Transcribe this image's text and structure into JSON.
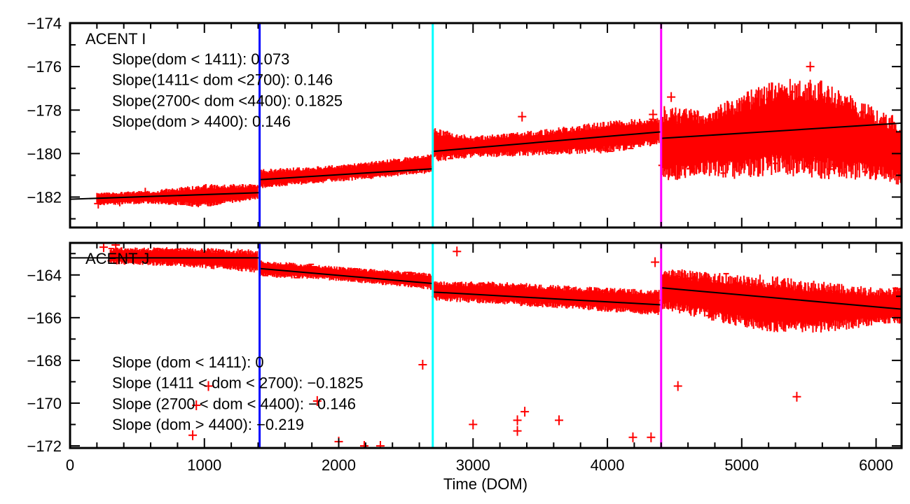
{
  "chart_data": [
    {
      "type": "scatter",
      "panel_label": "ACENT I",
      "annotations": [
        "Slope(dom < 1411): 0.073",
        "Slope(1411< dom <2700): 0.146",
        "Slope(2700< dom <4400): 0.1825",
        "Slope(dom > 4400): 0.146"
      ],
      "xlim": [
        0,
        6190
      ],
      "ylim": [
        -183.4,
        -174
      ],
      "yticks": [
        -174,
        -176,
        -178,
        -180,
        -182
      ],
      "ytick_labels": [
        "−174",
        "−176",
        "−178",
        "−180",
        "−182"
      ],
      "series_color": "#ff0000",
      "band": [
        [
          200,
          -182.4,
          -181.8
        ],
        [
          600,
          -182.3,
          -181.7
        ],
        [
          1000,
          -182.5,
          -181.4
        ],
        [
          1400,
          -182.1,
          -181.4
        ],
        [
          1411,
          -181.6,
          -180.7
        ],
        [
          1800,
          -181.4,
          -180.6
        ],
        [
          2200,
          -181.2,
          -180.4
        ],
        [
          2690,
          -180.9,
          -180.0
        ],
        [
          2700,
          -180.4,
          -178.8
        ],
        [
          3000,
          -180.2,
          -179.2
        ],
        [
          3500,
          -180.1,
          -178.9
        ],
        [
          4000,
          -180.0,
          -178.5
        ],
        [
          4390,
          -179.6,
          -178.3
        ],
        [
          4400,
          -181.4,
          -177.8
        ],
        [
          4700,
          -181.0,
          -178.0
        ],
        [
          5000,
          -181.2,
          -177.2
        ],
        [
          5300,
          -181.0,
          -176.5
        ],
        [
          5600,
          -181.2,
          -176.6
        ],
        [
          5900,
          -181.2,
          -177.6
        ],
        [
          6190,
          -181.5,
          -178.4
        ]
      ],
      "outliers": [
        [
          210,
          -182.3
        ],
        [
          370,
          -182.2
        ],
        [
          560,
          -181.8
        ],
        [
          3365,
          -178.3
        ],
        [
          4340,
          -178.2
        ],
        [
          4475,
          -177.4
        ],
        [
          5510,
          -176.0
        ],
        [
          4620,
          -180.7
        ],
        [
          5700,
          -180.5
        ]
      ],
      "fit_segments": [
        {
          "x": [
            0,
            1411
          ],
          "y": [
            -182.1,
            -181.8
          ]
        },
        {
          "x": [
            1411,
            2700
          ],
          "y": [
            -181.2,
            -180.7
          ]
        },
        {
          "x": [
            2700,
            4400
          ],
          "y": [
            -179.9,
            -179.0
          ]
        },
        {
          "x": [
            4400,
            6190
          ],
          "y": [
            -179.3,
            -178.6
          ]
        }
      ]
    },
    {
      "type": "scatter",
      "panel_label": "ACENT J",
      "annotations": [
        "Slope (dom < 1411): 0",
        "Slope (1411 < dom < 2700): −0.1825",
        "Slope (2700 < dom < 4400): −0.146",
        "Slope (dom > 4400): −0.219"
      ],
      "xlim": [
        0,
        6190
      ],
      "ylim": [
        -172.1,
        -162.5
      ],
      "yticks": [
        -164,
        -166,
        -168,
        -170,
        -172
      ],
      "ytick_labels": [
        "−164",
        "−166",
        "−168",
        "−170",
        "−172"
      ],
      "series_color": "#ff0000",
      "band": [
        [
          300,
          -163.5,
          -162.7
        ],
        [
          800,
          -163.6,
          -162.7
        ],
        [
          1400,
          -163.9,
          -162.8
        ],
        [
          1411,
          -164.1,
          -163.3
        ],
        [
          1800,
          -164.2,
          -163.5
        ],
        [
          2200,
          -164.4,
          -163.7
        ],
        [
          2690,
          -164.7,
          -163.9
        ],
        [
          2700,
          -165.2,
          -164.3
        ],
        [
          3200,
          -165.4,
          -164.3
        ],
        [
          3700,
          -165.6,
          -164.5
        ],
        [
          4390,
          -165.9,
          -164.7
        ],
        [
          4400,
          -165.6,
          -163.6
        ],
        [
          4800,
          -166.2,
          -163.9
        ],
        [
          5200,
          -166.7,
          -164.0
        ],
        [
          5600,
          -166.7,
          -164.3
        ],
        [
          6000,
          -166.4,
          -164.6
        ],
        [
          6190,
          -166.3,
          -164.5
        ]
      ],
      "outliers": [
        [
          250,
          -162.7
        ],
        [
          340,
          -162.6
        ],
        [
          913,
          -171.5
        ],
        [
          940,
          -170.1
        ],
        [
          1030,
          -169.2
        ],
        [
          1840,
          -169.9
        ],
        [
          2000,
          -171.8
        ],
        [
          2190,
          -172.0
        ],
        [
          2310,
          -172.0
        ],
        [
          2625,
          -168.2
        ],
        [
          2880,
          -162.9
        ],
        [
          3000,
          -171.0
        ],
        [
          3330,
          -171.3
        ],
        [
          3330,
          -170.8
        ],
        [
          3385,
          -170.4
        ],
        [
          3640,
          -170.8
        ],
        [
          4190,
          -171.6
        ],
        [
          4325,
          -171.6
        ],
        [
          4355,
          -163.4
        ],
        [
          4525,
          -169.2
        ],
        [
          5410,
          -169.7
        ]
      ],
      "fit_segments": [
        {
          "x": [
            0,
            1411
          ],
          "y": [
            -163.2,
            -163.2
          ]
        },
        {
          "x": [
            1411,
            2700
          ],
          "y": [
            -163.7,
            -164.4
          ]
        },
        {
          "x": [
            2700,
            4400
          ],
          "y": [
            -164.8,
            -165.4
          ]
        },
        {
          "x": [
            4400,
            6190
          ],
          "y": [
            -164.6,
            -165.6
          ]
        }
      ]
    }
  ],
  "xaxis": {
    "label": "Time (DOM)",
    "ticks": [
      0,
      1000,
      2000,
      3000,
      4000,
      5000,
      6000
    ],
    "tick_labels": [
      "0",
      "1000",
      "2000",
      "3000",
      "4000",
      "5000",
      "6000"
    ]
  },
  "vlines": [
    {
      "x": 1411,
      "color": "#0000ff"
    },
    {
      "x": 2700,
      "color": "#00ffff"
    },
    {
      "x": 4400,
      "color": "#ff00ff"
    }
  ]
}
